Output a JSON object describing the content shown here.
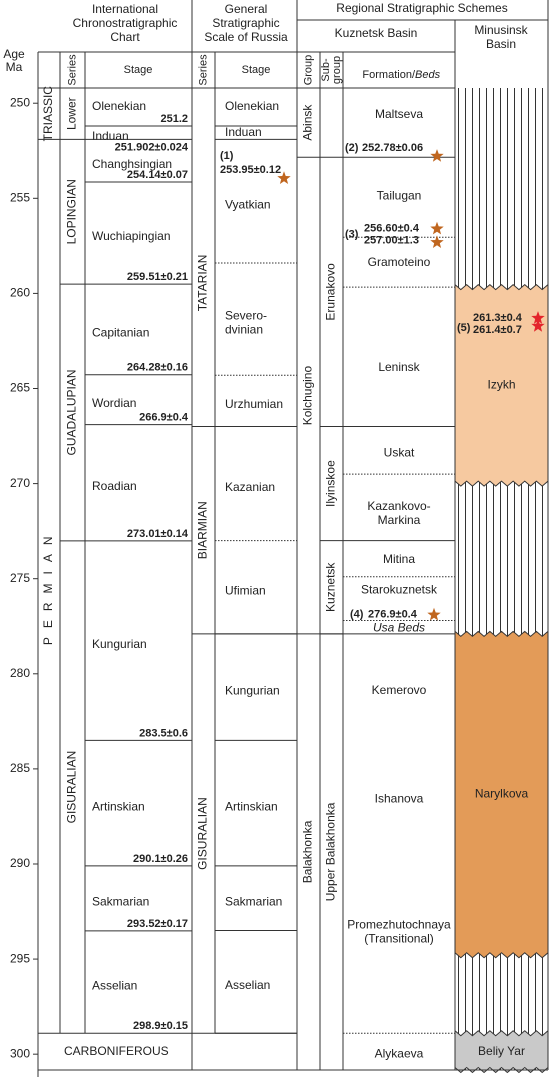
{
  "age_axis": {
    "labels": [
      "Age",
      "Ma"
    ],
    "ticks": [
      250,
      255,
      260,
      265,
      270,
      275,
      280,
      285,
      290,
      295,
      300
    ],
    "lim": [
      249.2,
      301.2
    ],
    "color": "#c98a4b"
  },
  "headers": {
    "ics": [
      "International",
      "Chronostratigraphic",
      "Chart"
    ],
    "russia": [
      "General",
      "Stratigraphic",
      "Scale of Russia"
    ],
    "regional": "Regional Stratigraphic Schemes",
    "kuznetsk": "Kuznetsk Basin",
    "minusinsk": [
      "Minusinsk",
      "Basin"
    ],
    "ics_series": "Series",
    "ics_stage": "Stage",
    "ru_series": "Series",
    "ru_stage": "Stage",
    "group": "Group",
    "subgroup": [
      "Sub-",
      "group"
    ],
    "formation": "Formation/",
    "beds": "Beds"
  },
  "ics": {
    "systems": [
      {
        "name": "TRIASSIC",
        "base": 251.902
      },
      {
        "name": "PERMIAN",
        "base": 298.9
      }
    ],
    "carboniferous": "CARBONIFEROUS",
    "series": [
      {
        "name": "Lower",
        "base": 251.902
      },
      {
        "name": "LOPINGIAN",
        "base": 259.51
      },
      {
        "name": "GUADALUPIAN",
        "base": 273.01
      },
      {
        "name": "GISURALIAN",
        "base": 298.9
      }
    ],
    "stages": [
      "Olenekian",
      "Induan",
      "Changhsingian",
      "Wuchiapingian",
      "Capitanian",
      "Wordian",
      "Roadian",
      "Kungurian",
      "Artinskian",
      "Sakmarian",
      "Asselian"
    ],
    "boundaries": [
      251.2,
      {
        "value": 251.902,
        "label": "251.902±0.024"
      },
      {
        "value": 254.14,
        "label": "254.14±0.07"
      },
      {
        "value": 259.51,
        "label": "259.51±0.21"
      },
      {
        "value": 264.28,
        "label": "264.28±0.16"
      },
      {
        "value": 266.9,
        "label": "266.9±0.4"
      },
      {
        "value": 273.01,
        "label": "273.01±0.14"
      },
      {
        "value": 283.5,
        "label": "283.5±0.6"
      },
      {
        "value": 290.1,
        "label": "290.1±0.26"
      },
      {
        "value": 293.52,
        "label": "293.52±0.17"
      },
      {
        "value": 298.9,
        "label": "298.9±0.15"
      }
    ]
  },
  "russia": {
    "series": [
      {
        "name": "TATARIAN",
        "top": 251.902,
        "base": 267.0
      },
      {
        "name": "BIARMIAN",
        "top": 267.0,
        "base": 277.9
      },
      {
        "name": "GISURALIAN",
        "top": 277.9,
        "base": 298.9
      }
    ],
    "stages": [
      {
        "name": [
          "Olenekian"
        ],
        "top": 249.2,
        "base": 251.2
      },
      {
        "name": [
          "Induan"
        ],
        "top": 251.2,
        "base": 251.902
      },
      {
        "name": [
          "Vyatkian"
        ],
        "top": 251.902,
        "base": 258.4
      },
      {
        "name": [
          "Severo-",
          "dvinian"
        ],
        "top": 258.4,
        "base": 264.3
      },
      {
        "name": [
          "Urzhumian"
        ],
        "top": 264.3,
        "base": 267.0
      },
      {
        "name": [
          "Kazanian"
        ],
        "top": 267.0,
        "base": 273.0
      },
      {
        "name": [
          "Ufimian"
        ],
        "top": 273.0,
        "base": 277.9
      },
      {
        "name": [
          "Kungurian"
        ],
        "top": 277.9,
        "base": 283.5
      },
      {
        "name": [
          "Artinskian"
        ],
        "top": 283.5,
        "base": 290.1
      },
      {
        "name": [
          "Sakmarian"
        ],
        "top": 290.1,
        "base": 293.5
      },
      {
        "name": [
          "Asselian"
        ],
        "top": 293.5,
        "base": 298.9
      }
    ]
  },
  "kuznetsk": {
    "groups": [
      {
        "name": "Abinsk",
        "top": 249.2,
        "base": 252.84
      },
      {
        "name": "Kolchugino",
        "top": 252.84,
        "base": 277.9
      },
      {
        "name": "Balakhonka",
        "top": 277.9,
        "base": 301.2
      }
    ],
    "subgroups": [
      {
        "name": "Erunakovo",
        "top": 252.84,
        "base": 267.0
      },
      {
        "name": "Ilyinskoe",
        "top": 267.0,
        "base": 273.0
      },
      {
        "name": "Kuznetsk",
        "top": 273.0,
        "base": 277.9
      },
      {
        "name": "Upper Balakhonka",
        "top": 277.9,
        "base": 301.2
      }
    ],
    "formations": [
      {
        "name": [
          "Maltseva"
        ],
        "at": 250.6
      },
      {
        "name": [
          "Tailugan"
        ],
        "at": 254.9
      },
      {
        "name": [
          "Gramoteino"
        ],
        "at": 258.4
      },
      {
        "name": [
          "Leninsk"
        ],
        "at": 263.9
      },
      {
        "name": [
          "Uskat"
        ],
        "at": 268.4
      },
      {
        "name": [
          "Kazankovo-",
          "Markina"
        ],
        "at": 271.6
      },
      {
        "name": [
          "Mitina"
        ],
        "at": 274.0
      },
      {
        "name": [
          "Starokuznetsk"
        ],
        "at": 275.6
      },
      {
        "name": [
          "Usa Beds"
        ],
        "at": 277.6,
        "italic": true
      },
      {
        "name": [
          "Kemerovo"
        ],
        "at": 280.9
      },
      {
        "name": [
          "Ishanova"
        ],
        "at": 286.6
      },
      {
        "name": [
          "Promezhutochnaya",
          "(Transitional)"
        ],
        "at": 293.6
      },
      {
        "name": [
          "Alykaeva"
        ],
        "at": 300.0
      }
    ],
    "boundaries": [
      252.84,
      257.05,
      259.67,
      267.0,
      269.5,
      273.0,
      274.9,
      277.2,
      277.9,
      298.9
    ]
  },
  "minusinsk": {
    "units": [
      {
        "name": "Izykh",
        "top": 259.67,
        "base": 270.0,
        "color": "#f6c9a0"
      },
      {
        "name": "Narylkova",
        "top": 277.9,
        "base": 294.8,
        "color": "#e39b58"
      },
      {
        "name": "Beliy Yar",
        "top": 298.9,
        "base": 301.2,
        "color": "#c9c9c9"
      }
    ]
  },
  "dates": [
    {
      "marker": "(1)",
      "values": [
        {
          "value": 253.95,
          "label": "253.95±0.12"
        }
      ],
      "color": "#c0661f"
    },
    {
      "marker": "(2)",
      "values": [
        {
          "value": 252.78,
          "label": "252.78±0.06"
        }
      ],
      "color": "#c0661f"
    },
    {
      "marker": "(3)",
      "values": [
        {
          "value": 256.6,
          "label": "256.60±0.4"
        },
        {
          "value": 257.0,
          "label": "257.00±1.3"
        }
      ],
      "color": "#c0661f"
    },
    {
      "marker": "(4)",
      "values": [
        {
          "value": 276.9,
          "label": "276.9±0.4"
        }
      ],
      "color": "#c0661f"
    },
    {
      "marker": "(5)",
      "values": [
        {
          "value": 261.3,
          "label": "261.3±0.4"
        },
        {
          "value": 261.4,
          "label": "261.4±0.7"
        }
      ],
      "color": "#e3242b"
    }
  ]
}
